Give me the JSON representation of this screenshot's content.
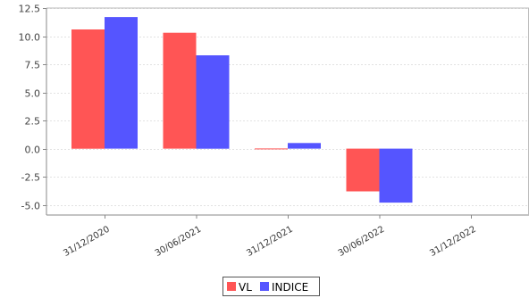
{
  "chart_data": {
    "type": "bar",
    "categories": [
      "31/12/2020",
      "30/06/2021",
      "31/12/2021",
      "30/06/2022",
      "31/12/2022"
    ],
    "series": [
      {
        "name": "VL",
        "color": "#ff5555",
        "values": [
          10.6,
          10.3,
          0.02,
          -3.8,
          null
        ]
      },
      {
        "name": "INDICE",
        "color": "#5555ff",
        "values": [
          11.7,
          8.3,
          0.5,
          -4.8,
          null
        ]
      }
    ],
    "yticks": [
      12.5,
      10.0,
      7.5,
      5.0,
      2.5,
      0.0,
      -2.5,
      -5.0
    ],
    "ytick_labels": [
      "12.5",
      "10.0",
      "7.5",
      "5.0",
      "2.5",
      "0.0",
      "-2.5",
      "-5.0"
    ],
    "ylim": [
      -5.9,
      12.5
    ],
    "grid": true,
    "legend_position": "bottom",
    "title": "",
    "xlabel": "",
    "ylabel": ""
  }
}
